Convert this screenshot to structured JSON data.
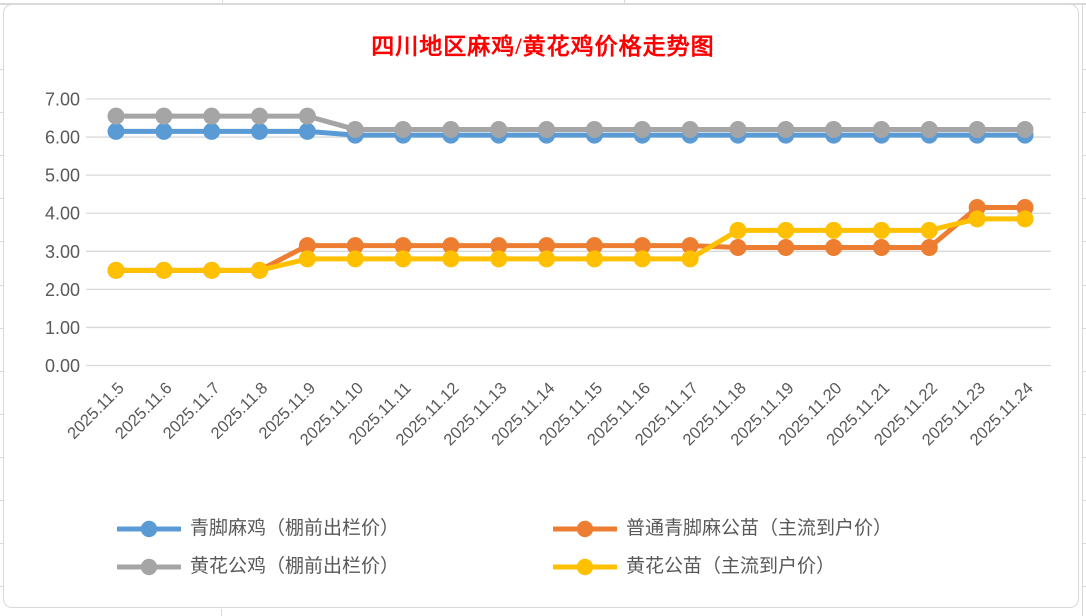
{
  "chart_data": {
    "type": "line",
    "title": "四川地区麻鸡/黄花鸡价格走势图",
    "title_color": "#ff0000",
    "xlabel": "",
    "ylabel": "",
    "ylim": [
      0,
      7
    ],
    "ytick_step": 1,
    "ytick_format": "two_decimals",
    "grid": true,
    "legend_position": "bottom",
    "axis_text_color": "#595959",
    "gridline_color": "#d9d9d9",
    "categories": [
      "2025.11.5",
      "2025.11.6",
      "2025.11.7",
      "2025.11.8",
      "2025.11.9",
      "2025.11.10",
      "2025.11.11",
      "2025.11.12",
      "2025.11.13",
      "2025.11.14",
      "2025.11.15",
      "2025.11.16",
      "2025.11.17",
      "2025.11.18",
      "2025.11.19",
      "2025.11.20",
      "2025.11.21",
      "2025.11.22",
      "2025.11.23",
      "2025.11.24"
    ],
    "series": [
      {
        "name": "青脚麻鸡（棚前出栏价）",
        "slug": "qingjiao-maji-outpen-price",
        "color": "#5B9BD5",
        "values": [
          6.15,
          6.15,
          6.15,
          6.15,
          6.15,
          6.05,
          6.05,
          6.05,
          6.05,
          6.05,
          6.05,
          6.05,
          6.05,
          6.05,
          6.05,
          6.05,
          6.05,
          6.05,
          6.05,
          6.05
        ]
      },
      {
        "name": "黄花公鸡（棚前出栏价）",
        "slug": "huanghua-cock-outpen-price",
        "color": "#A5A5A5",
        "values": [
          6.55,
          6.55,
          6.55,
          6.55,
          6.55,
          6.2,
          6.2,
          6.2,
          6.2,
          6.2,
          6.2,
          6.2,
          6.2,
          6.2,
          6.2,
          6.2,
          6.2,
          6.2,
          6.2,
          6.2
        ]
      },
      {
        "name": "普通青脚麻公苗（主流到户价）",
        "slug": "qingjiaoma-male-seedling-price",
        "color": "#ED7D31",
        "values": [
          2.5,
          2.5,
          2.5,
          2.5,
          3.15,
          3.15,
          3.15,
          3.15,
          3.15,
          3.15,
          3.15,
          3.15,
          3.15,
          3.1,
          3.1,
          3.1,
          3.1,
          3.1,
          4.15,
          4.15
        ]
      },
      {
        "name": "黄花公苗（主流到户价）",
        "slug": "huanghua-male-seedling-price",
        "color": "#FFC000",
        "values": [
          2.5,
          2.5,
          2.5,
          2.5,
          2.8,
          2.8,
          2.8,
          2.8,
          2.8,
          2.8,
          2.8,
          2.8,
          2.8,
          3.55,
          3.55,
          3.55,
          3.55,
          3.55,
          3.85,
          3.85
        ]
      }
    ]
  },
  "legend": {
    "items": [
      {
        "label": "青脚麻鸡（棚前出栏价）",
        "color": "#5B9BD5",
        "slug": "legend-qingjiao-maji"
      },
      {
        "label": "普通青脚麻公苗（主流到户价）",
        "color": "#ED7D31",
        "slug": "legend-qingjiaoma-seedling"
      },
      {
        "label": "黄花公鸡（棚前出栏价）",
        "color": "#A5A5A5",
        "slug": "legend-huanghua-cock"
      },
      {
        "label": "黄花公苗（主流到户价）",
        "color": "#FFC000",
        "slug": "legend-huanghua-seedling"
      }
    ]
  }
}
